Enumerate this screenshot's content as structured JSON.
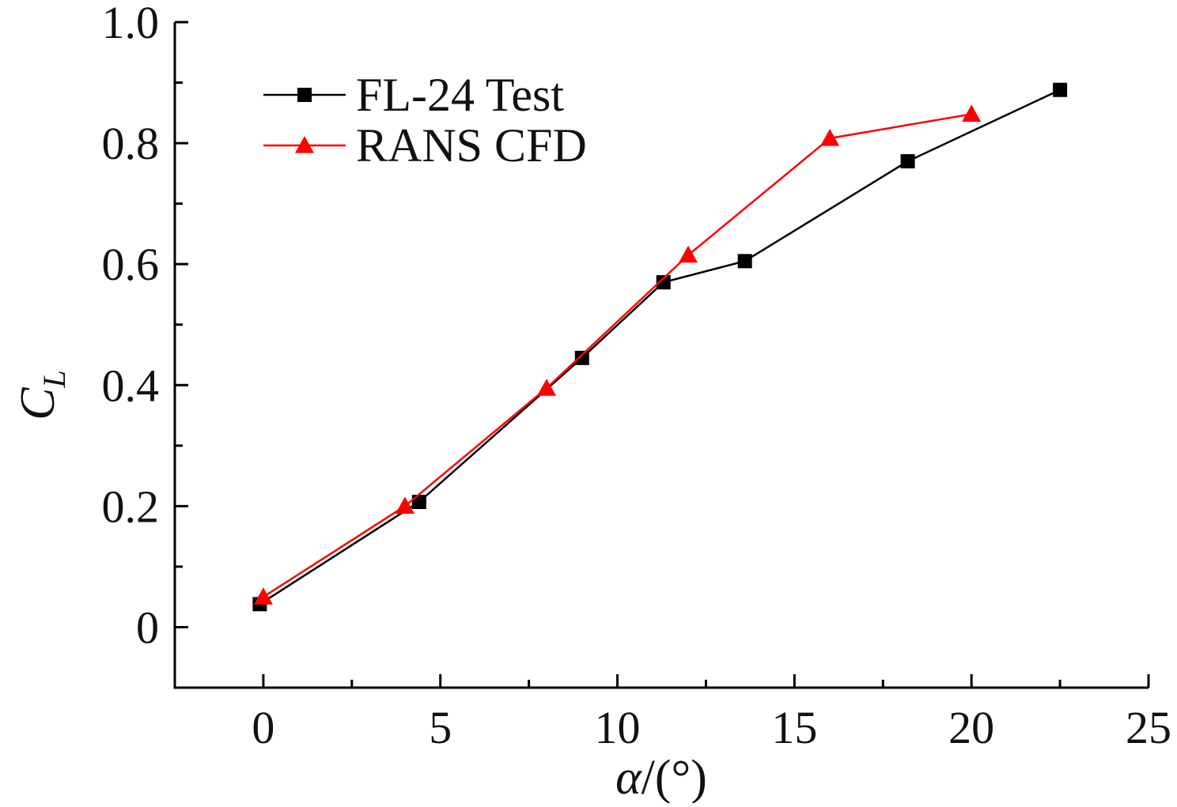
{
  "chart_data": {
    "type": "line",
    "title": "",
    "xlabel": "α/(°)",
    "xlabel_symbol": "α",
    "xlabel_unit": "/(°)",
    "ylabel": "C_L",
    "ylabel_main": "C",
    "ylabel_sub": "L",
    "xlim": [
      -2.5,
      25
    ],
    "ylim": [
      -0.1,
      1.0
    ],
    "xticks": [
      0,
      5,
      10,
      15,
      20,
      25
    ],
    "xtick_labels": [
      "0",
      "5",
      "10",
      "15",
      "20",
      "25"
    ],
    "yticks": [
      0,
      0.2,
      0.4,
      0.6,
      0.8,
      1.0
    ],
    "ytick_labels": [
      "0",
      "0.2",
      "0.4",
      "0.6",
      "0.8",
      "1.0"
    ],
    "grid": false,
    "legend_position": "top-left",
    "series": [
      {
        "name": "FL-24 Test",
        "color": "#000000",
        "marker": "square",
        "x": [
          -0.1,
          4.4,
          9.0,
          11.3,
          13.6,
          18.2,
          22.5
        ],
        "y": [
          0.038,
          0.207,
          0.445,
          0.57,
          0.605,
          0.77,
          0.888
        ]
      },
      {
        "name": "RANS CFD",
        "color": "#ff0000",
        "marker": "triangle",
        "x": [
          0.0,
          4.0,
          8.0,
          12.0,
          16.0,
          20.0
        ],
        "y": [
          0.05,
          0.2,
          0.395,
          0.615,
          0.808,
          0.848
        ]
      }
    ]
  }
}
